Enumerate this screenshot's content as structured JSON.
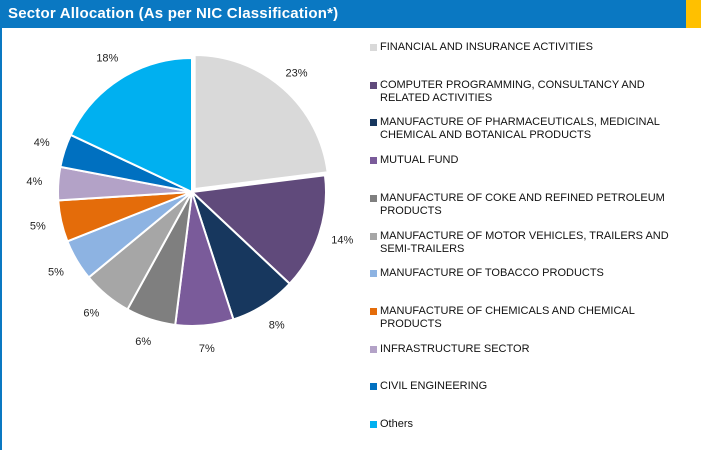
{
  "chart_data": {
    "type": "pie",
    "title": "Sector Allocation (As per NIC Classification*)",
    "categories": [
      "FINANCIAL AND INSURANCE ACTIVITIES",
      "COMPUTER PROGRAMMING, CONSULTANCY AND RELATED ACTIVITIES",
      "MANUFACTURE OF PHARMACEUTICALS, MEDICINAL CHEMICAL AND BOTANICAL PRODUCTS",
      "MUTUAL FUND",
      "MANUFACTURE OF COKE AND REFINED PETROLEUM PRODUCTS",
      "MANUFACTURE OF MOTOR VEHICLES, TRAILERS AND SEMI-TRAILERS",
      "MANUFACTURE OF TOBACCO PRODUCTS",
      "MANUFACTURE OF CHEMICALS AND CHEMICAL PRODUCTS",
      "INFRASTRUCTURE SECTOR",
      "CIVIL ENGINEERING",
      "Others"
    ],
    "values": [
      23,
      14,
      8,
      7,
      6,
      6,
      5,
      5,
      4,
      4,
      18
    ],
    "value_labels": [
      "23%",
      "14%",
      "8%",
      "7%",
      "6%",
      "6%",
      "5%",
      "5%",
      "4%",
      "4%",
      "18%"
    ],
    "colors": [
      "#d9d9d9",
      "#604a7b",
      "#17375e",
      "#7a5b9a",
      "#7f7f7f",
      "#a6a6a6",
      "#8db3e2",
      "#e46c0a",
      "#b3a2c7",
      "#0070c0",
      "#00b0f0"
    ],
    "legend": "right"
  }
}
